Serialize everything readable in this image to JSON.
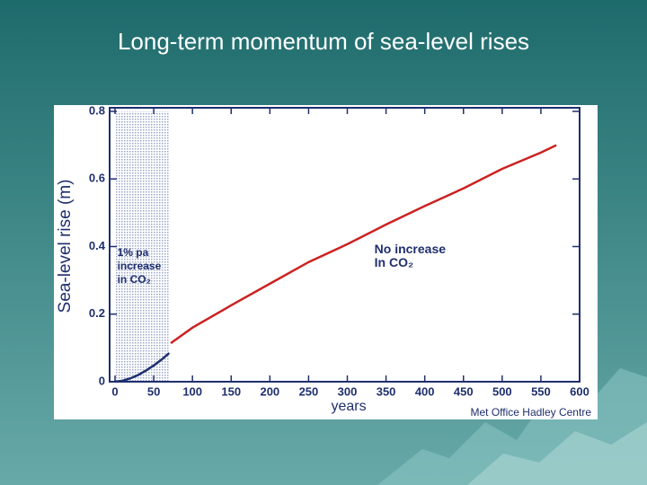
{
  "title": "Long-term momentum of sea-level rises",
  "chart_data": {
    "type": "line",
    "xlabel": "years",
    "ylabel": "Sea-level rise (m)",
    "xlim": [
      0,
      600
    ],
    "ylim": [
      0,
      0.8
    ],
    "xticks": [
      0,
      50,
      100,
      150,
      200,
      250,
      300,
      350,
      400,
      450,
      500,
      550,
      600
    ],
    "yticks": [
      0,
      0.2,
      0.4,
      0.6,
      0.8
    ],
    "shaded_region": [
      0,
      70
    ],
    "series": [
      {
        "color": "#1f2f6e",
        "x": [
          0,
          10,
          20,
          30,
          40,
          50,
          60,
          70
        ],
        "values": [
          0,
          0.003,
          0.01,
          0.02,
          0.033,
          0.048,
          0.065,
          0.085
        ]
      },
      {
        "color": "#cc2222",
        "x": [
          72,
          100,
          150,
          200,
          250,
          300,
          350,
          400,
          450,
          500,
          550,
          570
        ],
        "values": [
          0.114,
          0.16,
          0.226,
          0.29,
          0.354,
          0.407,
          0.465,
          0.52,
          0.572,
          0.63,
          0.678,
          0.7
        ]
      }
    ],
    "annotations": [
      {
        "lines": [
          "1% pa",
          "increase",
          "in CO₂"
        ],
        "x": 3,
        "y": 0.38
      },
      {
        "lines": [
          "No increase",
          "In CO₂"
        ],
        "x": 335,
        "y": 0.39
      }
    ],
    "credit": "Met Office Hadley Centre"
  }
}
